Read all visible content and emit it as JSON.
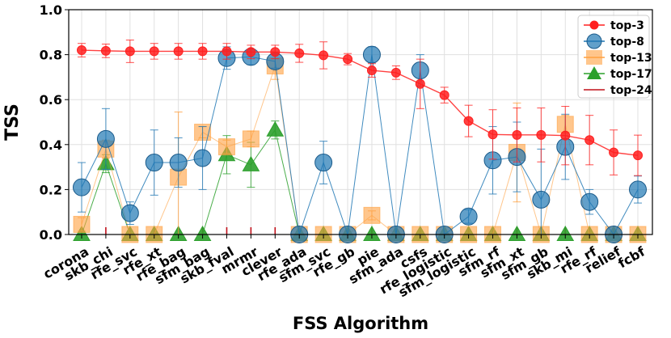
{
  "chart_data": {
    "type": "line",
    "title": "",
    "xlabel": "FSS Algorithm",
    "ylabel": "TSS",
    "ylim": [
      0,
      1.0
    ],
    "yticks": [
      0.0,
      0.2,
      0.4,
      0.6,
      0.8,
      1.0
    ],
    "ytick_labels": [
      "0.0",
      "0.2",
      "0.4",
      "0.6",
      "0.8",
      "1.0"
    ],
    "grid": true,
    "legend_position": "top-right",
    "categories": [
      "corona",
      "skb_chi",
      "rfe_svc",
      "rfe_xt",
      "rfe_bag",
      "sfm_bag",
      "skb_fval",
      "mrmr",
      "clever",
      "rfe_ada",
      "sfm_svc",
      "rfe_gb",
      "pie",
      "sfm_ada",
      "csfs",
      "rfe_logistic",
      "sfm_logistic",
      "sfm_rf",
      "sfm_xt",
      "sfm_gb",
      "skb_mi",
      "rfe_rf",
      "relief",
      "fcbf"
    ],
    "series": [
      {
        "name": "top-3",
        "color": "#ff2020",
        "marker": "circle",
        "values": [
          0.82,
          0.817,
          0.815,
          0.815,
          0.815,
          0.815,
          0.815,
          0.812,
          0.812,
          0.806,
          0.797,
          0.78,
          0.73,
          0.72,
          0.67,
          0.62,
          0.505,
          0.445,
          0.443,
          0.443,
          0.44,
          0.42,
          0.365,
          0.352
        ],
        "err": [
          0.03,
          0.03,
          0.05,
          0.035,
          0.035,
          0.035,
          0.035,
          0.03,
          0.03,
          0.04,
          0.06,
          0.025,
          0.03,
          0.03,
          0.11,
          0.035,
          0.07,
          0.11,
          0.12,
          0.12,
          0.13,
          0.11,
          0.1,
          0.09
        ]
      },
      {
        "name": "top-8",
        "color": "#1f77b4",
        "marker": "circle-large",
        "values": [
          0.21,
          0.425,
          0.095,
          0.32,
          0.32,
          0.34,
          0.785,
          0.79,
          0.77,
          0.0,
          0.32,
          0.0,
          0.8,
          0.0,
          0.73,
          0.0,
          0.08,
          0.33,
          0.345,
          0.155,
          0.39,
          0.145,
          0.0,
          0.2
        ],
        "err": [
          0.11,
          0.135,
          0.05,
          0.145,
          0.11,
          0.14,
          0.05,
          0.035,
          0.03,
          0.0,
          0.095,
          0.0,
          0.035,
          0.0,
          0.07,
          0.0,
          0.03,
          0.15,
          0.155,
          0.225,
          0.145,
          0.055,
          0.0,
          0.06
        ]
      },
      {
        "name": "top-13",
        "color": "#ffa040",
        "marker": "square",
        "values": [
          0.045,
          0.38,
          0.0,
          0.0,
          0.255,
          0.455,
          0.39,
          0.425,
          0.75,
          0.0,
          0.0,
          0.0,
          0.085,
          0.0,
          0.0,
          0.0,
          0.0,
          0.0,
          0.365,
          0.0,
          0.49,
          0.0,
          0.0,
          0.0
        ],
        "err": [
          0.03,
          0.04,
          0.0,
          0.0,
          0.29,
          0.025,
          0.03,
          0.035,
          0.06,
          0.0,
          0.0,
          0.0,
          0.02,
          0.0,
          0.0,
          0.0,
          0.0,
          0.0,
          0.22,
          0.0,
          0.04,
          0.0,
          0.0,
          0.0
        ]
      },
      {
        "name": "top-17",
        "color": "#2ca02c",
        "marker": "triangle",
        "values": [
          0.0,
          0.315,
          0.0,
          0.0,
          0.0,
          0.0,
          0.355,
          0.31,
          0.465,
          0.0,
          0.0,
          0.0,
          0.0,
          0.0,
          0.0,
          0.0,
          0.0,
          0.0,
          0.0,
          0.0,
          0.0,
          0.0,
          0.0,
          0.0
        ],
        "err": [
          0.0,
          0.04,
          0.0,
          0.0,
          0.0,
          0.0,
          0.085,
          0.1,
          0.04,
          0.0,
          0.0,
          0.0,
          0.0,
          0.0,
          0.0,
          0.0,
          0.0,
          0.0,
          0.0,
          0.0,
          0.0,
          0.0,
          0.0,
          0.0
        ]
      },
      {
        "name": "top-24",
        "color": "#c0101a",
        "marker": "tick",
        "values": [
          0.0,
          0.0,
          0.0,
          0.0,
          0.0,
          0.0,
          0.0,
          0.0,
          0.0,
          0.0,
          0.0,
          0.0,
          0.0,
          0.0,
          0.0,
          0.0,
          0.0,
          0.0,
          0.0,
          0.0,
          0.0,
          0.0,
          0.0,
          0.0
        ],
        "err": [
          0.0,
          0.0,
          0.0,
          0.0,
          0.0,
          0.0,
          0.0,
          0.0,
          0.0,
          0.0,
          0.0,
          0.0,
          0.0,
          0.0,
          0.0,
          0.0,
          0.0,
          0.0,
          0.0,
          0.0,
          0.0,
          0.0,
          0.0,
          0.0
        ]
      }
    ]
  }
}
